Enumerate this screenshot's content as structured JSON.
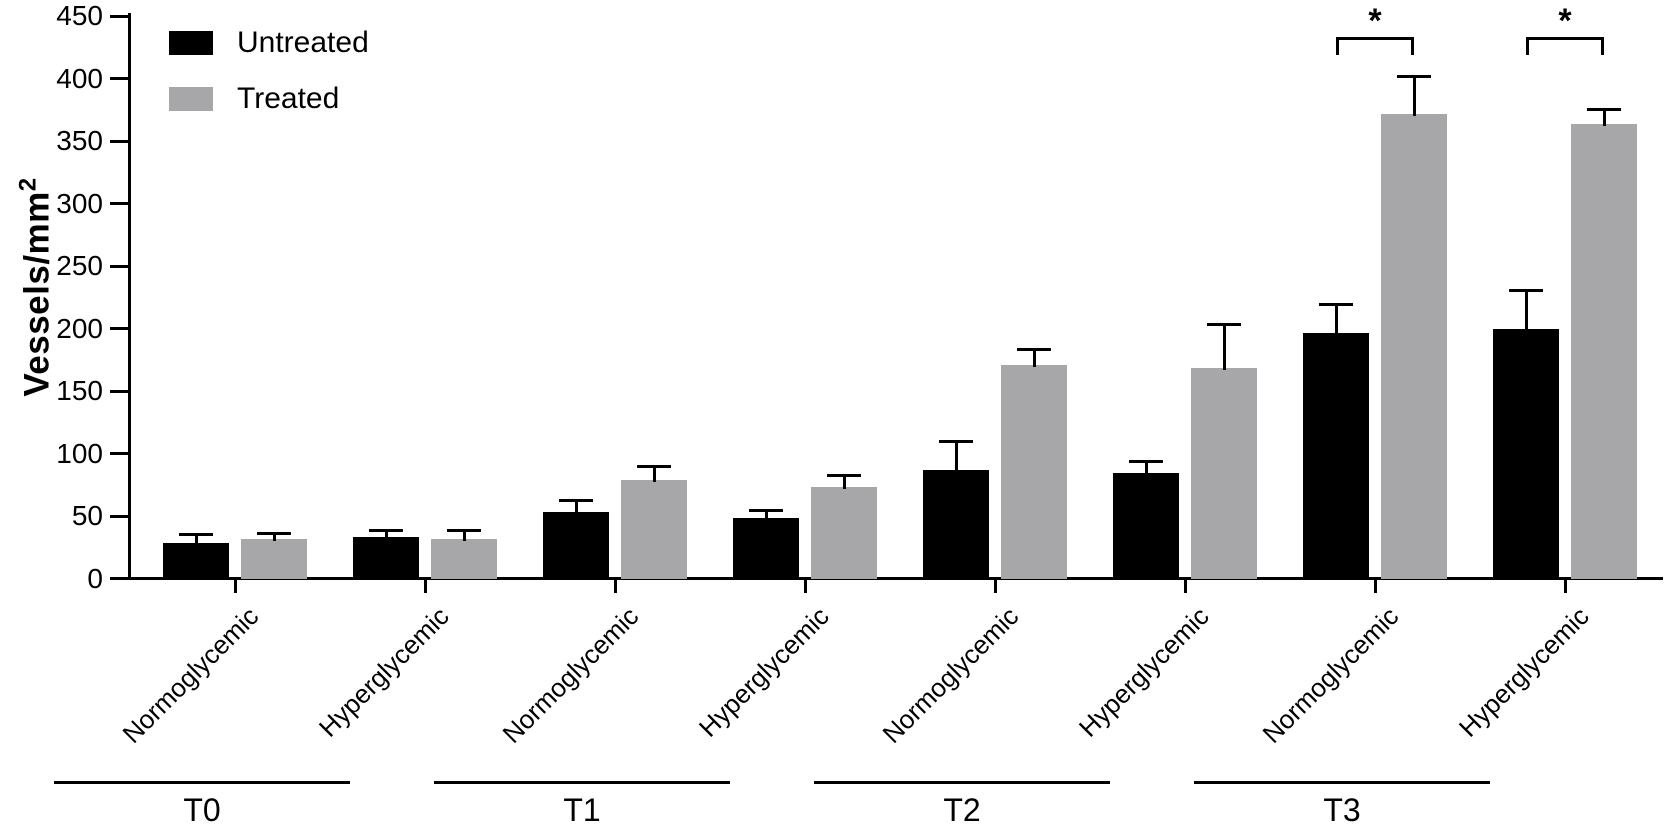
{
  "chart_data": {
    "type": "bar",
    "title": "",
    "ylabel": "Vessels/mm",
    "ylabel_exponent": "2",
    "ylim": [
      0,
      450
    ],
    "yticks": [
      0,
      50,
      100,
      150,
      200,
      250,
      300,
      350,
      400,
      450
    ],
    "grid": false,
    "legend_position": "top-left",
    "legend": [
      {
        "name": "Untreated",
        "color": "#000000"
      },
      {
        "name": "Treated",
        "color": "#a7a7aa"
      }
    ],
    "series_names": [
      "Untreated",
      "Treated"
    ],
    "timepoints": [
      {
        "label": "T0",
        "pairs": [
          {
            "category": "Normoglycemic",
            "untreated": {
              "value": 29,
              "err": 8
            },
            "treated": {
              "value": 32,
              "err": 6
            },
            "sig": null
          },
          {
            "category": "Hyperglycemic",
            "untreated": {
              "value": 34,
              "err": 6
            },
            "treated": {
              "value": 32,
              "err": 8
            },
            "sig": null
          }
        ]
      },
      {
        "label": "T1",
        "pairs": [
          {
            "category": "Normoglycemic",
            "untreated": {
              "value": 54,
              "err": 10
            },
            "treated": {
              "value": 79,
              "err": 12
            },
            "sig": null
          },
          {
            "category": "Hyperglycemic",
            "untreated": {
              "value": 49,
              "err": 7
            },
            "treated": {
              "value": 74,
              "err": 10
            },
            "sig": null
          }
        ]
      },
      {
        "label": "T2",
        "pairs": [
          {
            "category": "Normoglycemic",
            "untreated": {
              "value": 87,
              "err": 24
            },
            "treated": {
              "value": 171,
              "err": 14
            },
            "sig": null
          },
          {
            "category": "Hyperglycemic",
            "untreated": {
              "value": 85,
              "err": 10
            },
            "treated": {
              "value": 169,
              "err": 36
            },
            "sig": null
          }
        ]
      },
      {
        "label": "T3",
        "pairs": [
          {
            "category": "Normoglycemic",
            "untreated": {
              "value": 197,
              "err": 24
            },
            "treated": {
              "value": 372,
              "err": 31
            },
            "sig": "*"
          },
          {
            "category": "Hyperglycemic",
            "untreated": {
              "value": 200,
              "err": 32
            },
            "treated": {
              "value": 364,
              "err": 13
            },
            "sig": "*"
          }
        ]
      }
    ]
  }
}
